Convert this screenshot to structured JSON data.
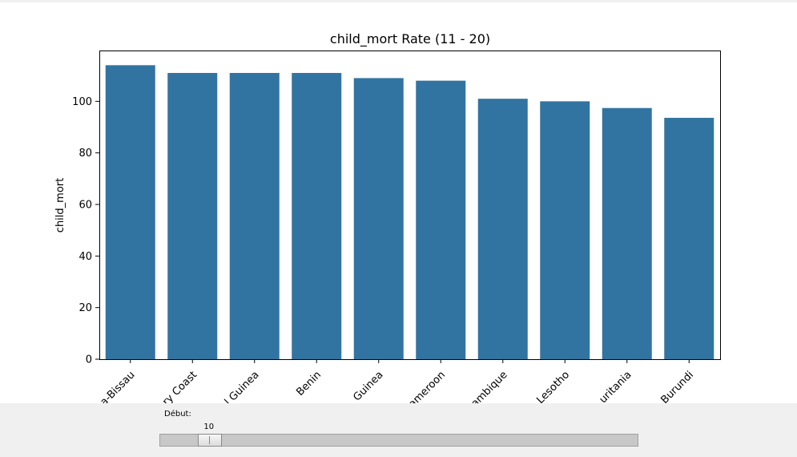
{
  "chart_data": {
    "type": "bar",
    "title": "child_mort Rate (11 - 20)",
    "xlabel": "",
    "ylabel": "child_mort",
    "categories": [
      "Guinea-Bissau",
      "Ivory Coast",
      "Equatorial Guinea",
      "Benin",
      "Guinea",
      "Cameroon",
      "Mozambique",
      "Lesotho",
      "Mauritania",
      "Burundi"
    ],
    "tick_labels_visible": [
      "a-Bissau",
      "ry Coast",
      "l Guinea",
      "Benin",
      "Guinea",
      "ameroon",
      "ambique",
      "Lesotho",
      "uritania",
      "Burundi"
    ],
    "values": [
      114,
      111,
      111,
      111,
      109,
      108,
      101,
      100,
      97.4,
      93.6
    ],
    "ylim": [
      0,
      119.7
    ],
    "yticks": [
      0,
      20,
      40,
      60,
      80,
      100
    ],
    "grid": false,
    "bar_color": "#3274a1"
  },
  "slider": {
    "label": "Début:",
    "value": "10",
    "min": 0,
    "max": 160,
    "current": 10
  }
}
